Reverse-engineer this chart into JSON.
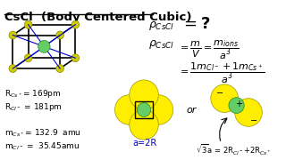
{
  "title": "CsCl  (Body Centered Cubic)",
  "bg_color": "#ffffff",
  "title_color": "#000000",
  "left_text_lines": [
    "R$_{Cs^+}$= 169pm",
    "R$_{Cl^-}$ = 181pm",
    "",
    "m$_{Cs^+}$= 132.9  amu",
    "m$_{Cl^-}$ =  35.45amu"
  ],
  "body_diag_color": "#0000cc",
  "corner_atom_color": "#cccc00",
  "center_atom_color": "#66cc66",
  "yellow_circle_color": "#ffee00",
  "green_center_color": "#66cc66",
  "or_text": "or",
  "a_label": "a=2R",
  "sqrt3_label": "$\\sqrt{3}$a = 2R$_{Cl^-}$+2R$_{Cs^+}$"
}
